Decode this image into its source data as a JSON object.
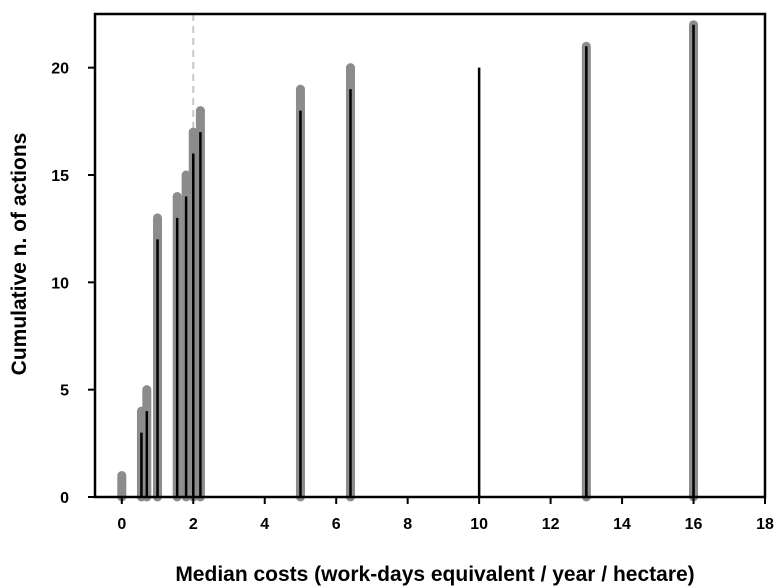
{
  "chart_data": {
    "type": "bar",
    "title": "",
    "xlabel": "Median costs (work-days equivalent / year / hectare)",
    "ylabel": "Cumulative n. of actions",
    "xlim": [
      -0.75,
      18
    ],
    "ylim": [
      0,
      22.5
    ],
    "xticks": [
      "0",
      "2",
      "4",
      "6",
      "8",
      "10",
      "12",
      "14",
      "16",
      "18"
    ],
    "yticks": [
      "0",
      "5",
      "10",
      "15",
      "20"
    ],
    "grid": false,
    "reference_line_x": 2,
    "colors": {
      "grey_series": "#8c8c8c",
      "black_series": "#000000",
      "reference_line": "#c8c8c8",
      "axes": "#000000"
    },
    "series": [
      {
        "style": "grey",
        "points": [
          {
            "x": 0,
            "y": 1
          },
          {
            "x": 0.55,
            "y": 4
          },
          {
            "x": 0.7,
            "y": 5
          },
          {
            "x": 1.0,
            "y": 13
          },
          {
            "x": 1.55,
            "y": 14
          },
          {
            "x": 1.8,
            "y": 15
          },
          {
            "x": 2.0,
            "y": 17
          },
          {
            "x": 2.2,
            "y": 18
          },
          {
            "x": 5.0,
            "y": 19
          },
          {
            "x": 6.4,
            "y": 20
          },
          {
            "x": 13.0,
            "y": 21
          },
          {
            "x": 16.0,
            "y": 22
          }
        ]
      },
      {
        "style": "black",
        "points": [
          {
            "x": 0.55,
            "y": 3
          },
          {
            "x": 0.7,
            "y": 4
          },
          {
            "x": 1.0,
            "y": 12
          },
          {
            "x": 1.55,
            "y": 13
          },
          {
            "x": 1.8,
            "y": 14
          },
          {
            "x": 2.0,
            "y": 16
          },
          {
            "x": 2.2,
            "y": 17
          },
          {
            "x": 5.0,
            "y": 18
          },
          {
            "x": 6.4,
            "y": 19
          },
          {
            "x": 10.0,
            "y": 20
          },
          {
            "x": 13.0,
            "y": 21
          },
          {
            "x": 16.0,
            "y": 22
          }
        ]
      }
    ]
  }
}
